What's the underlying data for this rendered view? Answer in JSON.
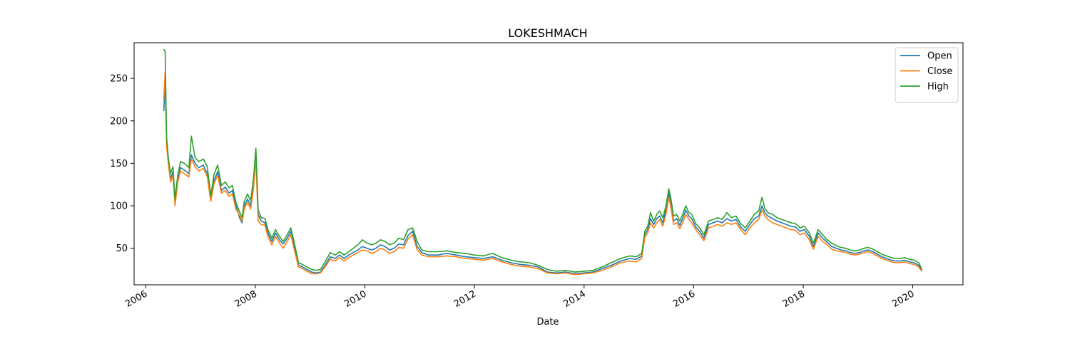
{
  "chart_data": {
    "type": "line",
    "title": "LOKESHMACH",
    "xlabel": "Date",
    "ylabel": "",
    "x_ticks": [
      "2006",
      "2008",
      "2010",
      "2012",
      "2014",
      "2016",
      "2018",
      "2020"
    ],
    "y_ticks": [
      50,
      100,
      150,
      200,
      250
    ],
    "xlim": [
      "2005-10-15",
      "2020-12-01"
    ],
    "ylim": [
      7,
      292
    ],
    "grid": false,
    "legend_position": "top-right",
    "x": [
      "2006-05-01",
      "2006-05-10",
      "2006-05-20",
      "2006-06-01",
      "2006-06-15",
      "2006-07-01",
      "2006-07-15",
      "2006-08-01",
      "2006-08-20",
      "2006-09-15",
      "2006-10-15",
      "2006-11-01",
      "2006-11-25",
      "2006-12-20",
      "2007-01-20",
      "2007-02-15",
      "2007-03-10",
      "2007-04-01",
      "2007-04-25",
      "2007-05-20",
      "2007-06-15",
      "2007-07-10",
      "2007-08-01",
      "2007-08-25",
      "2007-09-20",
      "2007-10-05",
      "2007-10-20",
      "2007-11-10",
      "2007-12-01",
      "2007-12-20",
      "2008-01-05",
      "2008-01-20",
      "2008-02-10",
      "2008-03-05",
      "2008-03-25",
      "2008-04-20",
      "2008-05-15",
      "2008-06-10",
      "2008-07-05",
      "2008-08-01",
      "2008-08-25",
      "2008-09-20",
      "2008-10-15",
      "2008-11-10",
      "2008-12-10",
      "2009-01-10",
      "2009-02-10",
      "2009-03-10",
      "2009-04-10",
      "2009-05-15",
      "2009-06-15",
      "2009-07-15",
      "2009-08-15",
      "2009-09-15",
      "2009-10-15",
      "2009-11-15",
      "2009-12-15",
      "2010-01-15",
      "2010-02-15",
      "2010-03-15",
      "2010-04-15",
      "2010-05-15",
      "2010-06-15",
      "2010-07-15",
      "2010-08-15",
      "2010-09-15",
      "2010-10-15",
      "2010-11-15",
      "2010-12-15",
      "2011-01-15",
      "2011-03-01",
      "2011-05-01",
      "2011-07-01",
      "2011-09-01",
      "2011-11-01",
      "2012-01-01",
      "2012-03-01",
      "2012-05-01",
      "2012-07-01",
      "2012-09-01",
      "2012-11-01",
      "2013-01-01",
      "2013-03-01",
      "2013-05-01",
      "2013-07-01",
      "2013-09-01",
      "2013-11-01",
      "2014-01-01",
      "2014-03-01",
      "2014-05-01",
      "2014-07-01",
      "2014-09-01",
      "2014-11-01",
      "2014-12-15",
      "2015-01-20",
      "2015-02-10",
      "2015-03-01",
      "2015-03-20",
      "2015-04-10",
      "2015-05-01",
      "2015-05-20",
      "2015-06-10",
      "2015-07-01",
      "2015-07-20",
      "2015-08-01",
      "2015-08-20",
      "2015-09-10",
      "2015-10-01",
      "2015-10-20",
      "2015-11-10",
      "2015-12-01",
      "2015-12-20",
      "2016-01-15",
      "2016-02-10",
      "2016-03-10",
      "2016-04-10",
      "2016-05-10",
      "2016-06-10",
      "2016-07-10",
      "2016-08-10",
      "2016-09-10",
      "2016-10-10",
      "2016-11-10",
      "2016-12-10",
      "2017-01-10",
      "2017-02-10",
      "2017-03-10",
      "2017-04-01",
      "2017-04-20",
      "2017-05-10",
      "2017-06-10",
      "2017-07-10",
      "2017-08-10",
      "2017-09-10",
      "2017-10-10",
      "2017-11-10",
      "2017-12-10",
      "2018-01-10",
      "2018-02-10",
      "2018-03-10",
      "2018-04-10",
      "2018-05-10",
      "2018-06-10",
      "2018-07-10",
      "2018-08-10",
      "2018-09-10",
      "2018-10-10",
      "2018-11-10",
      "2018-12-10",
      "2019-01-10",
      "2019-02-10",
      "2019-03-10",
      "2019-04-10",
      "2019-05-10",
      "2019-06-10",
      "2019-07-10",
      "2019-08-10",
      "2019-09-10",
      "2019-10-10",
      "2019-11-10",
      "2019-12-10",
      "2020-01-10",
      "2020-02-10",
      "2020-02-28"
    ],
    "series": [
      {
        "name": "Open",
        "color": "#1f77b4",
        "values": [
          212,
          245,
          175,
          150,
          132,
          140,
          103,
          130,
          145,
          142,
          138,
          160,
          150,
          145,
          148,
          138,
          108,
          130,
          140,
          118,
          122,
          115,
          118,
          100,
          85,
          80,
          100,
          108,
          100,
          125,
          160,
          90,
          82,
          80,
          68,
          58,
          68,
          60,
          55,
          62,
          70,
          50,
          30,
          28,
          25,
          22,
          21,
          22,
          30,
          40,
          38,
          42,
          38,
          42,
          45,
          48,
          52,
          50,
          48,
          50,
          54,
          52,
          48,
          50,
          55,
          54,
          65,
          70,
          52,
          45,
          42,
          42,
          44,
          42,
          40,
          39,
          38,
          40,
          36,
          33,
          31,
          30,
          28,
          22,
          21,
          22,
          20,
          21,
          22,
          26,
          30,
          35,
          38,
          37,
          41,
          66,
          72,
          85,
          78,
          85,
          88,
          80,
          95,
          115,
          105,
          82,
          85,
          77,
          85,
          95,
          88,
          85,
          75,
          70,
          62,
          78,
          80,
          82,
          80,
          85,
          82,
          84,
          75,
          70,
          78,
          85,
          88,
          100,
          92,
          88,
          85,
          82,
          80,
          78,
          76,
          75,
          70,
          72,
          64,
          52,
          68,
          62,
          57,
          52,
          50,
          48,
          47,
          45,
          44,
          45,
          47,
          48,
          46,
          43,
          40,
          38,
          36,
          35,
          35,
          36,
          34,
          33,
          30,
          25
        ]
      },
      {
        "name": "Close",
        "color": "#ff7f0e",
        "values": [
          225,
          258,
          170,
          148,
          128,
          136,
          100,
          127,
          141,
          138,
          134,
          155,
          146,
          141,
          144,
          134,
          105,
          126,
          136,
          115,
          118,
          111,
          114,
          96,
          88,
          82,
          97,
          104,
          96,
          121,
          155,
          82,
          78,
          77,
          64,
          54,
          64,
          56,
          50,
          58,
          66,
          46,
          28,
          26,
          23,
          20,
          20,
          21,
          28,
          37,
          35,
          39,
          35,
          39,
          42,
          45,
          48,
          47,
          44,
          46,
          50,
          48,
          44,
          46,
          51,
          50,
          61,
          66,
          48,
          42,
          40,
          40,
          41,
          40,
          38,
          37,
          36,
          38,
          34,
          31,
          29,
          28,
          26,
          21,
          20,
          21,
          19,
          20,
          21,
          24,
          28,
          33,
          35,
          34,
          38,
          63,
          68,
          80,
          74,
          80,
          84,
          76,
          90,
          110,
          100,
          78,
          80,
          73,
          80,
          90,
          84,
          80,
          72,
          66,
          59,
          74,
          76,
          78,
          76,
          80,
          78,
          80,
          72,
          66,
          74,
          80,
          84,
          95,
          88,
          84,
          80,
          78,
          76,
          74,
          72,
          71,
          66,
          68,
          60,
          49,
          64,
          58,
          54,
          49,
          47,
          46,
          45,
          43,
          42,
          43,
          45,
          46,
          44,
          41,
          38,
          36,
          34,
          33,
          33,
          34,
          32,
          31,
          28,
          23
        ]
      },
      {
        "name": "High",
        "color": "#2ca02c",
        "values": [
          284,
          282,
          180,
          155,
          138,
          146,
          108,
          135,
          152,
          150,
          145,
          182,
          157,
          152,
          155,
          146,
          112,
          137,
          148,
          124,
          128,
          121,
          124,
          104,
          92,
          86,
          106,
          114,
          106,
          132,
          168,
          95,
          86,
          85,
          72,
          62,
          72,
          64,
          58,
          66,
          74,
          54,
          33,
          31,
          28,
          25,
          24,
          25,
          34,
          45,
          42,
          46,
          42,
          46,
          50,
          54,
          60,
          56,
          54,
          56,
          60,
          58,
          54,
          56,
          62,
          60,
          72,
          74,
          58,
          48,
          46,
          46,
          47,
          45,
          44,
          42,
          41,
          44,
          39,
          36,
          34,
          33,
          30,
          25,
          23,
          24,
          22,
          23,
          24,
          28,
          33,
          38,
          41,
          40,
          44,
          70,
          76,
          92,
          82,
          90,
          94,
          86,
          100,
          120,
          110,
          88,
          90,
          82,
          90,
          100,
          92,
          90,
          79,
          74,
          66,
          82,
          84,
          86,
          84,
          92,
          86,
          88,
          79,
          74,
          82,
          90,
          94,
          110,
          97,
          92,
          90,
          86,
          84,
          82,
          80,
          79,
          74,
          76,
          68,
          56,
          72,
          66,
          60,
          56,
          53,
          51,
          50,
          48,
          47,
          48,
          50,
          51,
          49,
          46,
          43,
          41,
          39,
          38,
          38,
          39,
          37,
          36,
          33,
          26
        ]
      }
    ]
  }
}
